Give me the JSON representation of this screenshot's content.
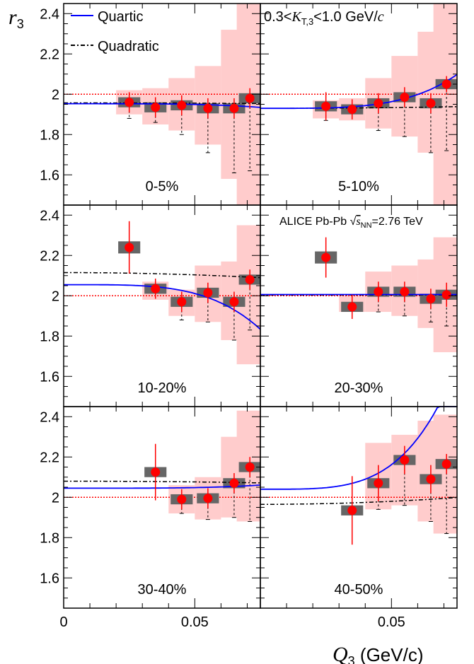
{
  "chart_data": {
    "type": "scatter",
    "y_label": "r",
    "y_label_sub": "3",
    "x_label_main": "Q",
    "x_label_sub": "3",
    "x_label_unit": " (GeV/c)",
    "x_range": [
      0,
      0.075
    ],
    "y_range": [
      1.45,
      2.45
    ],
    "y_ticks": [
      1.6,
      1.8,
      2.0,
      2.2,
      2.4
    ],
    "y_tick_labels": [
      "1.6",
      "1.8",
      "2",
      "2.2",
      "2.4"
    ],
    "x_ticks": [
      0,
      0.05
    ],
    "x_tick_labels": [
      "0",
      "0.05"
    ],
    "reference_value": 2.0,
    "legend": {
      "quartic": "Quartic",
      "quadratic": "Quadratic"
    },
    "annotations": {
      "kt_range_pre": "0.3<",
      "kt_K": "K",
      "kt_sub": "T,3",
      "kt_post": "<1.0 GeV/",
      "kt_c": "c",
      "collab_pre": "ALICE Pb-Pb ",
      "collab_sqrt": "√",
      "collab_s": "s",
      "collab_sub": "NN",
      "collab_post": "=2.76 TeV"
    },
    "colors": {
      "points": "#ff0000",
      "syst_box": "#666666",
      "syst_band": "#ffcccc",
      "quartic": "#0000ff",
      "quadratic": "#000000",
      "reference": "#ff0000"
    },
    "panels": [
      {
        "label": "0-5%",
        "points": [
          {
            "x": 0.025,
            "y": 1.96,
            "stat": 0.05,
            "syst": 0.025,
            "band_lo": 1.9,
            "band_hi": 2.02,
            "lower": 1.88
          },
          {
            "x": 0.035,
            "y": 1.935,
            "stat": 0.05,
            "syst": 0.025,
            "band_lo": 1.85,
            "band_hi": 2.03,
            "lower": 1.86
          },
          {
            "x": 0.045,
            "y": 1.945,
            "stat": 0.05,
            "syst": 0.025,
            "band_lo": 1.82,
            "band_hi": 2.08,
            "lower": 1.8
          },
          {
            "x": 0.055,
            "y": 1.93,
            "stat": 0.05,
            "syst": 0.025,
            "band_lo": 1.75,
            "band_hi": 2.14,
            "lower": 1.71
          },
          {
            "x": 0.065,
            "y": 1.93,
            "stat": 0.05,
            "syst": 0.025,
            "band_lo": 1.58,
            "band_hi": 2.32,
            "lower": 1.61
          },
          {
            "x": 0.071,
            "y": 1.98,
            "stat": 0.05,
            "syst": 0.025,
            "band_lo": 1.45,
            "band_hi": 2.45,
            "lower": 1.62
          }
        ],
        "quartic": {
          "a": 1.953,
          "b": -0.00058
        },
        "quadratic": {
          "a": 1.957,
          "b": -6e-06
        }
      },
      {
        "label": "5-10%",
        "points": [
          {
            "x": 0.025,
            "y": 1.94,
            "stat": 0.07,
            "syst": 0.025,
            "band_lo": 1.88,
            "band_hi": 1.97,
            "lower": 1.87
          },
          {
            "x": 0.035,
            "y": 1.925,
            "stat": 0.05,
            "syst": 0.025,
            "band_lo": 1.87,
            "band_hi": 1.98,
            "lower": 1.87
          },
          {
            "x": 0.045,
            "y": 1.955,
            "stat": 0.05,
            "syst": 0.025,
            "band_lo": 1.83,
            "band_hi": 2.08,
            "lower": 1.82
          },
          {
            "x": 0.055,
            "y": 1.985,
            "stat": 0.05,
            "syst": 0.025,
            "band_lo": 1.79,
            "band_hi": 2.19,
            "lower": 1.79
          },
          {
            "x": 0.065,
            "y": 1.955,
            "stat": 0.05,
            "syst": 0.025,
            "band_lo": 1.71,
            "band_hi": 2.31,
            "lower": 1.71
          },
          {
            "x": 0.071,
            "y": 2.05,
            "stat": 0.04,
            "syst": 0.025,
            "band_lo": 1.45,
            "band_hi": 2.45,
            "lower": 1.72
          }
        ],
        "quartic": {
          "a": 1.93,
          "b": 0.0053
        },
        "quadratic": {
          "a": 1.93,
          "b": 1.5e-05
        }
      },
      {
        "label": "10-20%",
        "points": [
          {
            "x": 0.025,
            "y": 2.24,
            "stat": 0.13,
            "syst": 0.03,
            "band_lo": 2.24,
            "band_hi": 2.24,
            "lower": 2.24
          },
          {
            "x": 0.035,
            "y": 2.035,
            "stat": 0.05,
            "syst": 0.025,
            "band_lo": 1.98,
            "band_hi": 2.07,
            "lower": 1.98
          },
          {
            "x": 0.045,
            "y": 1.97,
            "stat": 0.05,
            "syst": 0.025,
            "band_lo": 1.9,
            "band_hi": 2.03,
            "lower": 1.88
          },
          {
            "x": 0.055,
            "y": 2.015,
            "stat": 0.05,
            "syst": 0.025,
            "band_lo": 1.87,
            "band_hi": 2.15,
            "lower": 1.87
          },
          {
            "x": 0.065,
            "y": 1.97,
            "stat": 0.05,
            "syst": 0.025,
            "band_lo": 1.78,
            "band_hi": 2.17,
            "lower": 1.78
          },
          {
            "x": 0.071,
            "y": 2.08,
            "stat": 0.05,
            "syst": 0.025,
            "band_lo": 1.66,
            "band_hi": 2.35,
            "lower": 1.83
          }
        ],
        "quartic": {
          "a": 2.055,
          "b": -0.007
        },
        "quadratic": {
          "a": 2.115,
          "b": -4.5e-05
        }
      },
      {
        "label": "20-30%",
        "points": [
          {
            "x": 0.025,
            "y": 2.19,
            "stat": 0.1,
            "syst": 0.03,
            "band_lo": 2.19,
            "band_hi": 2.19,
            "lower": 2.19
          },
          {
            "x": 0.035,
            "y": 1.945,
            "stat": 0.06,
            "syst": 0.025,
            "band_lo": 1.92,
            "band_hi": 2.0,
            "lower": 1.92
          },
          {
            "x": 0.045,
            "y": 2.02,
            "stat": 0.05,
            "syst": 0.025,
            "band_lo": 1.92,
            "band_hi": 2.12,
            "lower": 1.92
          },
          {
            "x": 0.055,
            "y": 2.02,
            "stat": 0.05,
            "syst": 0.025,
            "band_lo": 1.9,
            "band_hi": 2.15,
            "lower": 1.9
          },
          {
            "x": 0.065,
            "y": 1.985,
            "stat": 0.05,
            "syst": 0.025,
            "band_lo": 1.84,
            "band_hi": 2.18,
            "lower": 1.87
          },
          {
            "x": 0.071,
            "y": 2.005,
            "stat": 0.06,
            "syst": 0.025,
            "band_lo": 1.72,
            "band_hi": 2.29,
            "lower": 1.85
          }
        ],
        "quartic": {
          "a": 2.006,
          "b": 0.0
        },
        "quadratic": {
          "a": 2.004,
          "b": 0.0
        }
      },
      {
        "label": "30-40%",
        "points": [
          {
            "x": 0.035,
            "y": 2.125,
            "stat": 0.14,
            "syst": 0.025,
            "band_lo": 2.125,
            "band_hi": 2.125,
            "lower": 2.125
          },
          {
            "x": 0.045,
            "y": 1.99,
            "stat": 0.05,
            "syst": 0.025,
            "band_lo": 1.92,
            "band_hi": 2.06,
            "lower": 1.92
          },
          {
            "x": 0.055,
            "y": 1.995,
            "stat": 0.05,
            "syst": 0.025,
            "band_lo": 1.89,
            "band_hi": 2.1,
            "lower": 1.89
          },
          {
            "x": 0.065,
            "y": 2.07,
            "stat": 0.05,
            "syst": 0.025,
            "band_lo": 1.9,
            "band_hi": 2.3,
            "lower": 1.9
          },
          {
            "x": 0.071,
            "y": 2.15,
            "stat": 0.05,
            "syst": 0.025,
            "band_lo": 1.88,
            "band_hi": 2.43,
            "lower": 1.88
          }
        ],
        "quartic": {
          "a": 2.045,
          "b": 0.0005
        },
        "quadratic": {
          "a": 2.08,
          "b": -1.5e-05
        }
      },
      {
        "label": "40-50%",
        "points": [
          {
            "x": 0.035,
            "y": 1.935,
            "stat": 0.17,
            "syst": 0.025,
            "band_lo": 1.935,
            "band_hi": 1.935,
            "lower": 1.935
          },
          {
            "x": 0.045,
            "y": 2.07,
            "stat": 0.09,
            "syst": 0.025,
            "band_lo": 1.94,
            "band_hi": 2.27,
            "lower": 1.94
          },
          {
            "x": 0.055,
            "y": 2.185,
            "stat": 0.07,
            "syst": 0.025,
            "band_lo": 1.96,
            "band_hi": 2.31,
            "lower": 1.96
          },
          {
            "x": 0.065,
            "y": 2.09,
            "stat": 0.07,
            "syst": 0.025,
            "band_lo": 1.88,
            "band_hi": 2.38,
            "lower": 1.88
          },
          {
            "x": 0.071,
            "y": 2.165,
            "stat": 0.05,
            "syst": 0.025,
            "band_lo": 1.82,
            "band_hi": 2.41,
            "lower": 1.82
          }
        ],
        "quartic": {
          "a": 2.04,
          "b": 0.0195
        },
        "quadratic": {
          "a": 1.965,
          "b": 6e-05
        }
      }
    ]
  }
}
